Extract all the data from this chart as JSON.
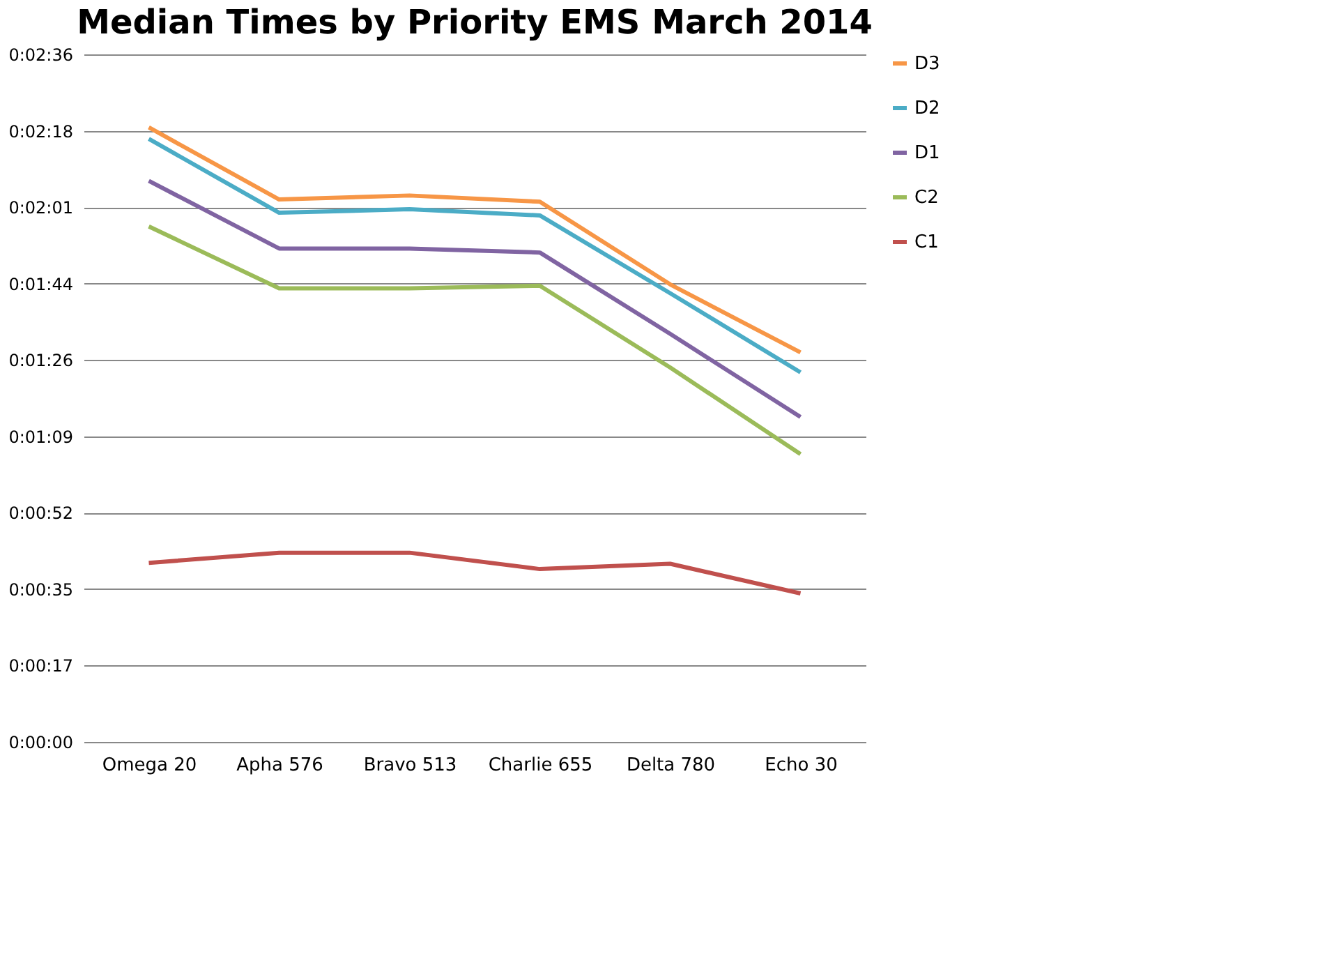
{
  "chart_data": {
    "type": "line",
    "title": "Median Times by Priority EMS March 2014",
    "categories": [
      "Omega 20",
      "Apha 576",
      "Bravo 513",
      "Charlie  655",
      "Delta 780",
      "Echo 30"
    ],
    "series": [
      {
        "name": "D3",
        "color": "#f79646",
        "values": [
          139.0,
          122.7,
          123.6,
          122.2,
          103.5,
          88.1
        ]
      },
      {
        "name": "D2",
        "color": "#4bacc6",
        "values": [
          136.4,
          119.7,
          120.5,
          119.1,
          101.5,
          83.6
        ]
      },
      {
        "name": "D1",
        "color": "#8064a2",
        "values": [
          126.9,
          111.6,
          111.6,
          110.7,
          92.3,
          73.5
        ]
      },
      {
        "name": "C2",
        "color": "#9bbb59",
        "values": [
          116.6,
          102.6,
          102.6,
          103.2,
          84.7,
          65.1
        ]
      },
      {
        "name": "C1",
        "color": "#c0504d",
        "values": [
          40.5,
          42.8,
          42.8,
          39.1,
          40.3,
          33.6
        ]
      }
    ],
    "ylim": [
      0,
      155.52
    ],
    "yticks": [
      {
        "value": 0,
        "label": "0:00:00"
      },
      {
        "value": 17.28,
        "label": "0:00:17"
      },
      {
        "value": 34.56,
        "label": "0:00:35"
      },
      {
        "value": 51.84,
        "label": "0:00:52"
      },
      {
        "value": 69.12,
        "label": "0:01:09"
      },
      {
        "value": 86.4,
        "label": "0:01:26"
      },
      {
        "value": 103.68,
        "label": "0:01:44"
      },
      {
        "value": 120.96,
        "label": "0:02:01"
      },
      {
        "value": 138.24,
        "label": "0:02:18"
      },
      {
        "value": 155.52,
        "label": "0:02:36"
      }
    ],
    "grid": "y",
    "legend": "right",
    "marker": "none",
    "line_style": "solid"
  }
}
